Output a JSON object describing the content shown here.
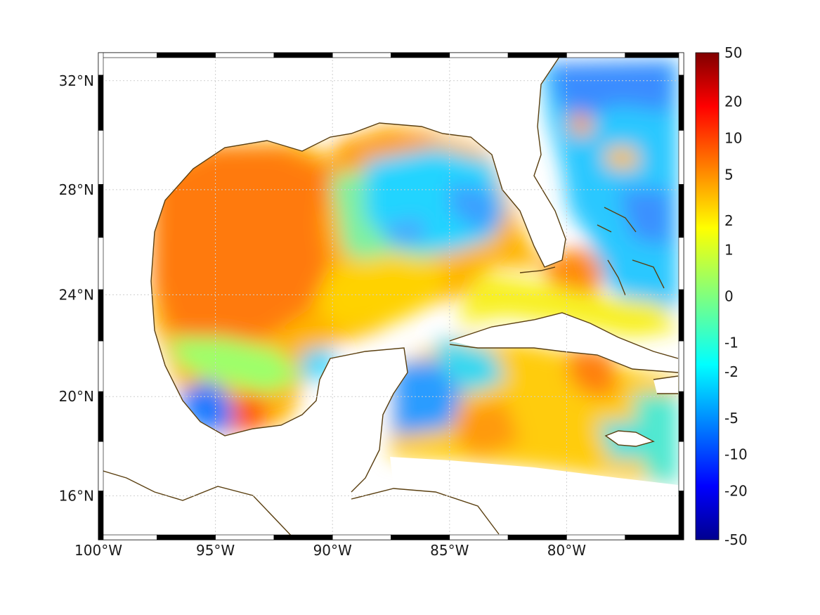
{
  "map": {
    "extent": {
      "lon_min": -100,
      "lon_max": -75,
      "lat_min": 14.2,
      "lat_max": 33.0
    },
    "projection": "mercator",
    "grid": true,
    "frame": "black-and-white alternating",
    "coastline_color": "#5a3f10"
  },
  "axes": {
    "x_ticks": [
      {
        "lon": -100,
        "label": "100°W"
      },
      {
        "lon": -95,
        "label": "95°W"
      },
      {
        "lon": -90,
        "label": "90°W"
      },
      {
        "lon": -85,
        "label": "85°W"
      },
      {
        "lon": -80,
        "label": "80°W"
      }
    ],
    "y_ticks": [
      {
        "lat": 32,
        "label": "32°N"
      },
      {
        "lat": 28,
        "label": "28°N"
      },
      {
        "lat": 24,
        "label": "24°N"
      },
      {
        "lat": 20,
        "label": "20°N"
      },
      {
        "lat": 16,
        "label": "16°N"
      }
    ]
  },
  "colorbar": {
    "colormap": "jet",
    "scale": "symmetric nonlinear",
    "ticks": [
      {
        "value": 50,
        "label": "50"
      },
      {
        "value": 20,
        "label": "20"
      },
      {
        "value": 10,
        "label": "10"
      },
      {
        "value": 5,
        "label": "5"
      },
      {
        "value": 2,
        "label": "2"
      },
      {
        "value": 1,
        "label": "1"
      },
      {
        "value": 0,
        "label": "0"
      },
      {
        "value": -1,
        "label": "-1"
      },
      {
        "value": -2,
        "label": "-2"
      },
      {
        "value": -5,
        "label": "-5"
      },
      {
        "value": -10,
        "label": "-10"
      },
      {
        "value": -20,
        "label": "-20"
      },
      {
        "value": -50,
        "label": "-50"
      }
    ]
  },
  "field_regions": [
    {
      "region": "western Gulf of Mexico",
      "approx_value": 6
    },
    {
      "region": "northern Gulf off Mississippi/Alabama",
      "approx_value": 4
    },
    {
      "region": "Bay of Campeche west",
      "approx_value": -4
    },
    {
      "region": "Bay of Campeche east",
      "approx_value": 8
    },
    {
      "region": "eastern Gulf off Florida",
      "approx_value": -2
    },
    {
      "region": "Atlantic off Georgia/Carolina",
      "approx_value": -4
    },
    {
      "region": "Straits of Florida",
      "approx_value": 5
    },
    {
      "region": "Cayman Sea",
      "approx_value": -3
    },
    {
      "region": "Caribbean south of Cuba",
      "approx_value": 3
    }
  ]
}
